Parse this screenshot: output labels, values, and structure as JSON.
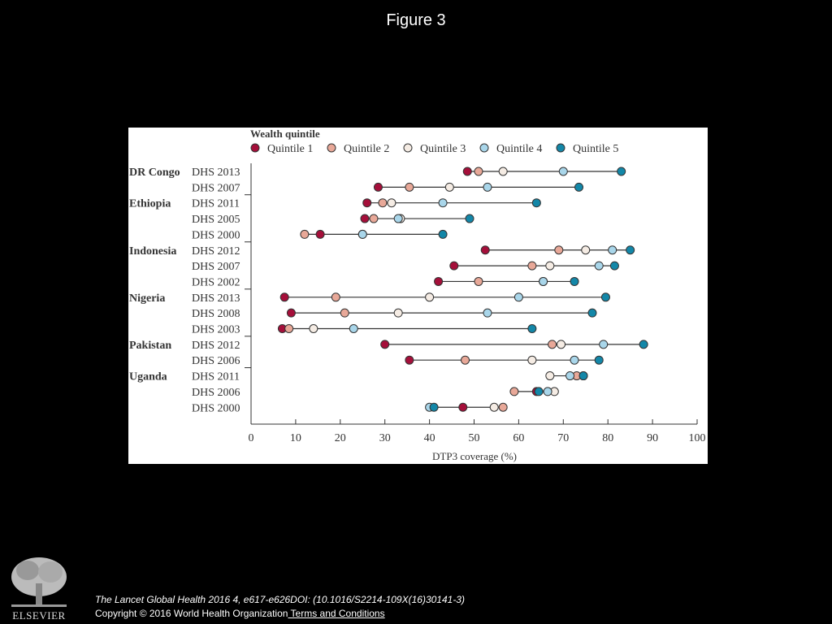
{
  "page": {
    "title": "Figure 3",
    "citation": "The Lancet Global Health 2016 4, e617-e626DOI: (10.1016/S2214-109X(16)30141-3)",
    "copyright": "Copyright © 2016 World Health Organization",
    "terms_link": " Terms and Conditions",
    "publisher_logo": "ELSEVIER"
  },
  "chart_data": {
    "type": "scatter",
    "subtype": "dot-plot",
    "legend_title": "Wealth quintile",
    "legend_position": "top",
    "xlabel": "DTP3 coverage (%)",
    "xlim": [
      0,
      100
    ],
    "xticks": [
      0,
      10,
      20,
      30,
      40,
      50,
      60,
      70,
      80,
      90,
      100
    ],
    "grid": false,
    "series_colors": [
      "#a50f3a",
      "#e8a898",
      "#f5ece4",
      "#a9d6ea",
      "#1387a8"
    ],
    "series_names": [
      "Quintile 1",
      "Quintile 2",
      "Quintile 3",
      "Quintile 4",
      "Quintile 5"
    ],
    "groups": [
      {
        "country": "DR Congo",
        "surveys": [
          {
            "label": "DHS 2013",
            "values": [
              48.5,
              51,
              56.5,
              70,
              83
            ]
          },
          {
            "label": "DHS 2007",
            "values": [
              28.5,
              35.5,
              44.5,
              53,
              73.5
            ]
          }
        ]
      },
      {
        "country": "Ethiopia",
        "surveys": [
          {
            "label": "DHS 2011",
            "values": [
              26,
              29.5,
              31.5,
              43,
              64
            ]
          },
          {
            "label": "DHS 2005",
            "values": [
              25.5,
              27.5,
              33.5,
              33,
              49
            ]
          },
          {
            "label": "DHS 2000",
            "values": [
              15.5,
              12,
              25,
              25,
              43
            ]
          }
        ]
      },
      {
        "country": "Indonesia",
        "surveys": [
          {
            "label": "DHS 2012",
            "values": [
              52.5,
              69,
              75,
              81,
              85
            ]
          },
          {
            "label": "DHS 2007",
            "values": [
              45.5,
              63,
              67,
              78,
              81.5
            ]
          },
          {
            "label": "DHS 2002",
            "values": [
              42,
              51,
              65.5,
              65.5,
              72.5
            ]
          }
        ]
      },
      {
        "country": "Nigeria",
        "surveys": [
          {
            "label": "DHS 2013",
            "values": [
              7.5,
              19,
              40,
              60,
              79.5
            ]
          },
          {
            "label": "DHS 2008",
            "values": [
              9,
              21,
              33,
              53,
              76.5
            ]
          },
          {
            "label": "DHS 2003",
            "values": [
              7,
              8.5,
              14,
              23,
              63
            ]
          }
        ]
      },
      {
        "country": "Pakistan",
        "surveys": [
          {
            "label": "DHS 2012",
            "values": [
              30,
              67.5,
              69.5,
              79,
              88
            ]
          },
          {
            "label": "DHS 2006",
            "values": [
              35.5,
              48,
              63,
              72.5,
              78
            ]
          }
        ]
      },
      {
        "country": "Uganda",
        "surveys": [
          {
            "label": "DHS 2011",
            "values": [
              74.5,
              73,
              67,
              71.5,
              74.5
            ]
          },
          {
            "label": "DHS 2006",
            "values": [
              64,
              59,
              68,
              66.5,
              64.5
            ]
          },
          {
            "label": "DHS 2000",
            "values": [
              47.5,
              56.5,
              54.5,
              40,
              41
            ]
          }
        ]
      }
    ]
  }
}
